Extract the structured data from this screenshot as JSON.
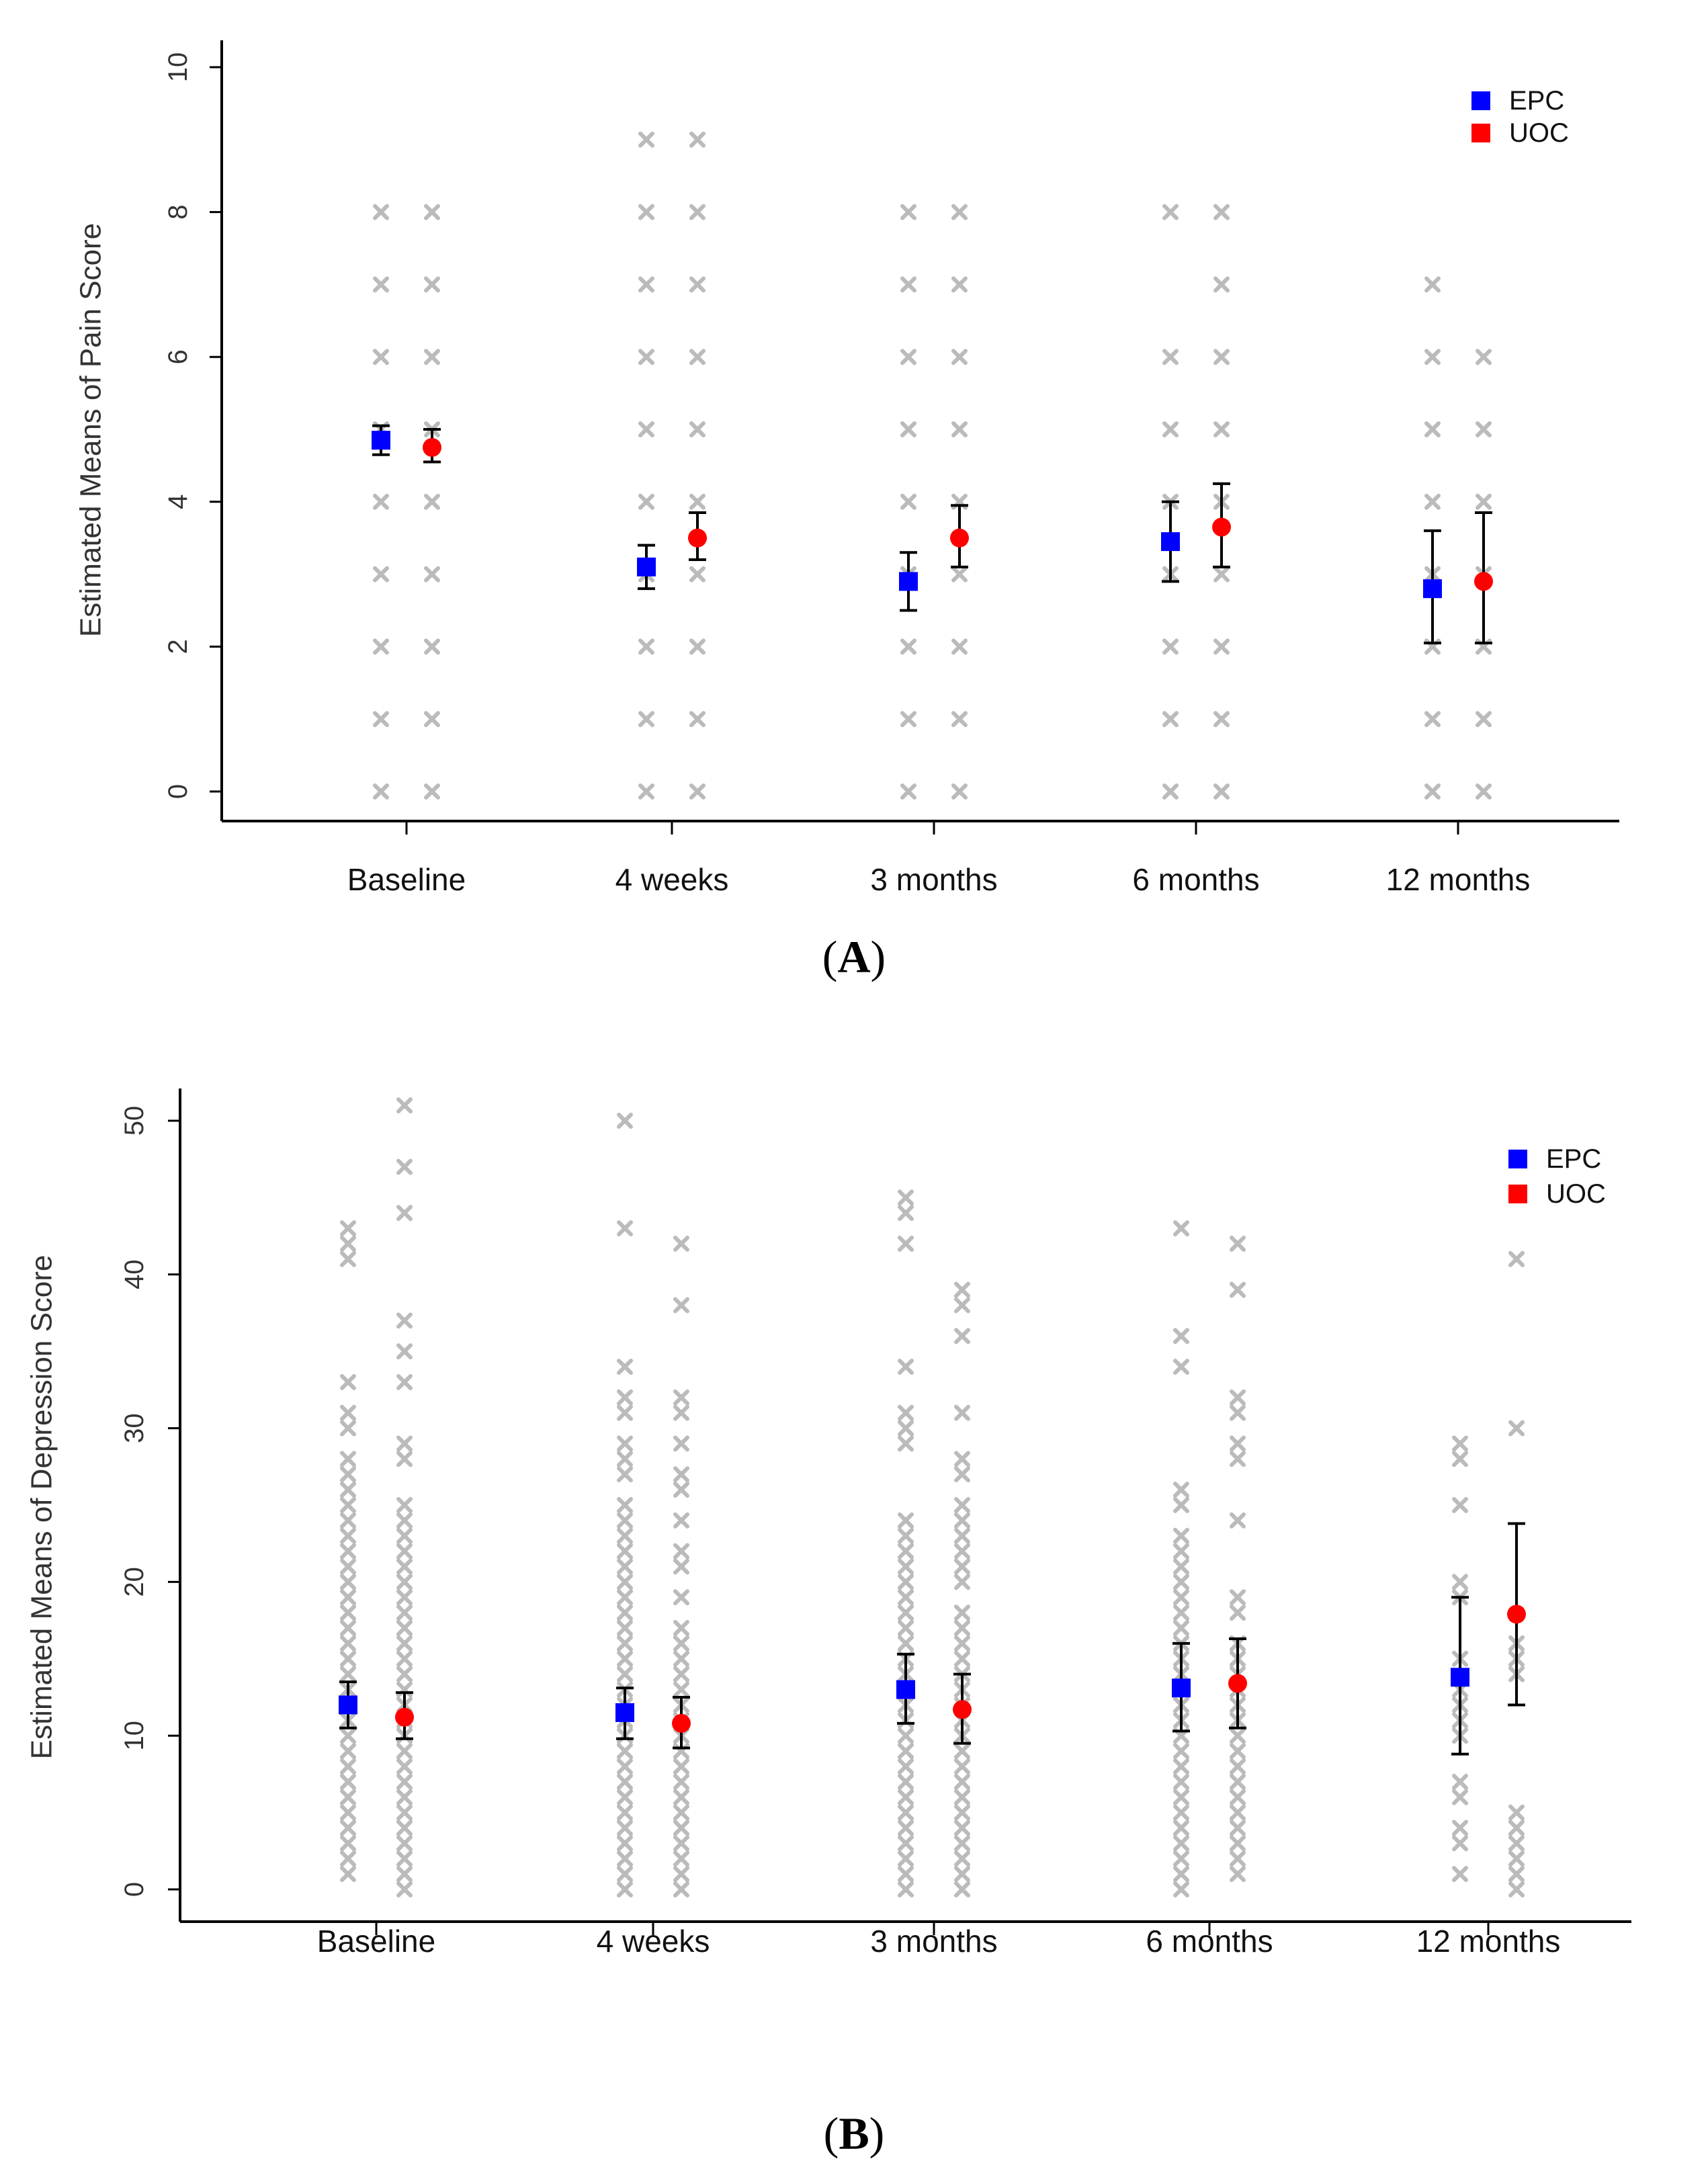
{
  "chart_data": [
    {
      "type": "scatter",
      "panel": "A",
      "title": "",
      "ylabel": "Estimated Means of Pain Score",
      "xlabel": "",
      "ylim": [
        0,
        10
      ],
      "yticks": [
        0,
        2,
        4,
        6,
        8,
        10
      ],
      "categories": [
        "Baseline",
        "4 weeks",
        "3 months",
        "6 months",
        "12 months"
      ],
      "legend": {
        "placement": "top-right",
        "entries": [
          {
            "name": "EPC",
            "color": "#0000ff",
            "marker": "square"
          },
          {
            "name": "UOC",
            "color": "#ff0000",
            "marker": "circle"
          }
        ]
      },
      "raw_color": "#bbbbbb",
      "error_color": "#000000",
      "series": [
        {
          "name": "EPC",
          "means": [
            4.85,
            3.1,
            2.9,
            3.45,
            2.8
          ],
          "ci_low": [
            4.65,
            2.8,
            2.5,
            2.9,
            2.05
          ],
          "ci_high": [
            5.05,
            3.4,
            3.3,
            4.0,
            3.6
          ],
          "raw": [
            [
              0,
              1,
              2,
              3,
              4,
              5,
              6,
              7,
              8
            ],
            [
              0,
              1,
              2,
              3,
              4,
              5,
              6,
              7,
              8,
              9
            ],
            [
              0,
              1,
              2,
              3,
              4,
              5,
              6,
              7,
              8
            ],
            [
              0,
              1,
              2,
              3,
              4,
              5,
              6,
              8
            ],
            [
              0,
              1,
              2,
              3,
              4,
              5,
              6,
              7
            ]
          ]
        },
        {
          "name": "UOC",
          "means": [
            4.75,
            3.5,
            3.5,
            3.65,
            2.9
          ],
          "ci_low": [
            4.55,
            3.2,
            3.1,
            3.1,
            2.05
          ],
          "ci_high": [
            5.0,
            3.85,
            3.95,
            4.25,
            3.85
          ],
          "raw": [
            [
              0,
              1,
              2,
              3,
              4,
              5,
              6,
              7,
              8
            ],
            [
              0,
              1,
              2,
              3,
              4,
              5,
              6,
              7,
              8,
              9
            ],
            [
              0,
              1,
              2,
              3,
              4,
              5,
              6,
              7,
              8
            ],
            [
              0,
              1,
              2,
              3,
              4,
              5,
              6,
              7,
              8
            ],
            [
              0,
              1,
              2,
              3,
              4,
              5,
              6
            ]
          ]
        }
      ]
    },
    {
      "type": "scatter",
      "panel": "B",
      "title": "",
      "ylabel": "Estimated Means of Depression Score",
      "xlabel": "",
      "ylim": [
        0,
        50
      ],
      "yticks": [
        0,
        10,
        20,
        30,
        40,
        50
      ],
      "categories": [
        "Baseline",
        "4 weeks",
        "3 months",
        "6 months",
        "12 months"
      ],
      "legend": {
        "placement": "top-right",
        "entries": [
          {
            "name": "EPC",
            "color": "#0000ff",
            "marker": "square"
          },
          {
            "name": "UOC",
            "color": "#ff0000",
            "marker": "circle"
          }
        ]
      },
      "raw_color": "#bbbbbb",
      "error_color": "#000000",
      "series": [
        {
          "name": "EPC",
          "means": [
            12.0,
            11.5,
            13.0,
            13.1,
            13.8
          ],
          "ci_low": [
            10.5,
            9.8,
            10.8,
            10.3,
            8.8
          ],
          "ci_high": [
            13.5,
            13.1,
            15.3,
            16.0,
            19.0
          ],
          "raw": [
            [
              1,
              2,
              3,
              4,
              5,
              6,
              7,
              8,
              9,
              10,
              11,
              12,
              13,
              14,
              15,
              16,
              17,
              18,
              19,
              20,
              21,
              22,
              23,
              24,
              25,
              26,
              27,
              28,
              30,
              31,
              33,
              41,
              42,
              43
            ],
            [
              0,
              1,
              2,
              3,
              4,
              5,
              6,
              7,
              8,
              9,
              10,
              11,
              12,
              13,
              14,
              15,
              16,
              17,
              18,
              19,
              20,
              21,
              22,
              23,
              24,
              25,
              27,
              28,
              29,
              31,
              32,
              34,
              43,
              50
            ],
            [
              0,
              1,
              2,
              3,
              4,
              5,
              6,
              7,
              8,
              9,
              10,
              11,
              12,
              13,
              14,
              15,
              16,
              17,
              18,
              19,
              20,
              21,
              22,
              23,
              24,
              29,
              30,
              31,
              34,
              42,
              44,
              45
            ],
            [
              0,
              1,
              2,
              3,
              4,
              5,
              6,
              7,
              8,
              9,
              10,
              11,
              12,
              13,
              14,
              15,
              16,
              17,
              18,
              19,
              20,
              21,
              22,
              23,
              25,
              26,
              34,
              36,
              43
            ],
            [
              1,
              3,
              4,
              6,
              7,
              10,
              11,
              12,
              13,
              15,
              19,
              20,
              25,
              28,
              29
            ]
          ]
        },
        {
          "name": "UOC",
          "means": [
            11.2,
            10.8,
            11.7,
            13.4,
            17.9
          ],
          "ci_low": [
            9.8,
            9.2,
            9.5,
            10.5,
            12.0
          ],
          "ci_high": [
            12.8,
            12.5,
            14.0,
            16.3,
            23.8
          ],
          "raw": [
            [
              0,
              1,
              2,
              3,
              4,
              5,
              6,
              7,
              8,
              9,
              10,
              11,
              12,
              13,
              14,
              15,
              16,
              17,
              18,
              19,
              20,
              21,
              22,
              23,
              24,
              25,
              28,
              29,
              33,
              35,
              37,
              44,
              47,
              51
            ],
            [
              0,
              1,
              2,
              3,
              4,
              5,
              6,
              7,
              8,
              9,
              10,
              11,
              12,
              13,
              14,
              15,
              16,
              17,
              19,
              21,
              22,
              24,
              26,
              27,
              29,
              31,
              32,
              38,
              42
            ],
            [
              0,
              1,
              2,
              3,
              4,
              5,
              6,
              7,
              8,
              9,
              10,
              11,
              12,
              13,
              14,
              15,
              16,
              17,
              18,
              20,
              21,
              22,
              23,
              24,
              25,
              27,
              28,
              31,
              36,
              38,
              39
            ],
            [
              1,
              2,
              3,
              4,
              5,
              6,
              7,
              8,
              9,
              10,
              11,
              12,
              13,
              14,
              15,
              16,
              18,
              19,
              24,
              28,
              29,
              31,
              32,
              39,
              42
            ],
            [
              0,
              1,
              2,
              3,
              4,
              5,
              14,
              15,
              16,
              30,
              41
            ]
          ]
        }
      ]
    }
  ],
  "captions": [
    "A",
    "B"
  ]
}
